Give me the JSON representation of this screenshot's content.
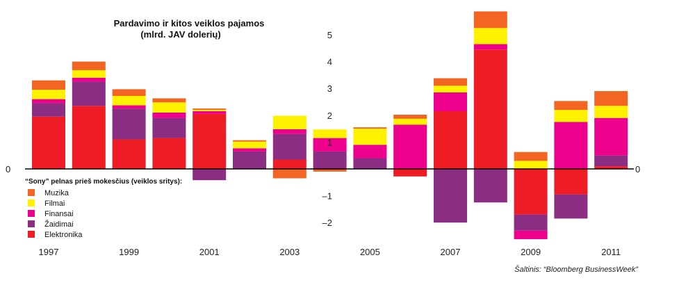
{
  "chart_data": {
    "type": "bar",
    "stacked": true,
    "title_line1": "Pardavimo ir kitos veiklos pajamos",
    "title_line2": "(mlrd. JAV dolerių)",
    "legend_title": "“Sony” pelnas prieš mokesčius (veiklos sritys):",
    "source": "Šaltinis: “Bloomberg BusinessWeek”",
    "ylim": [
      -2.65,
      6.0
    ],
    "yticks": [
      5,
      4,
      3,
      2,
      1,
      -1,
      -2
    ],
    "ytick_labels": [
      "5",
      "4",
      "3",
      "2",
      "1",
      "–1",
      "–2"
    ],
    "zero_label": "0",
    "categories": [
      "1997",
      "1998",
      "1999",
      "2000",
      "2001",
      "2002",
      "2003",
      "2004",
      "2005",
      "2006",
      "2007",
      "2008",
      "2009",
      "2010",
      "2011"
    ],
    "xtick_labels": [
      "1997",
      "",
      "1999",
      "",
      "2001",
      "",
      "2003",
      "",
      "2005",
      "",
      "2007",
      "",
      "2009",
      "",
      "2011"
    ],
    "legend_placement": "bottom-left",
    "series": [
      {
        "name": "Elektronika",
        "color": "#ee1c25",
        "values": [
          1.95,
          2.35,
          1.1,
          1.15,
          2.05,
          0,
          0.35,
          0,
          0,
          -0.28,
          2.15,
          4.45,
          -1.7,
          -0.95,
          0.1
        ]
      },
      {
        "name": "Žaidimai",
        "color": "#8b2d82",
        "values": [
          0.5,
          0.9,
          1.15,
          0.75,
          -0.42,
          0.65,
          0.95,
          0.65,
          0.4,
          0,
          -2.0,
          -1.25,
          -0.6,
          -0.9,
          0.4
        ]
      },
      {
        "name": "Finansai",
        "color": "#ec008c",
        "values": [
          0.15,
          0.15,
          0.12,
          0.2,
          0.1,
          0.12,
          0.18,
          0.5,
          0.5,
          1.65,
          0.7,
          0.2,
          -0.32,
          1.75,
          1.4
        ]
      },
      {
        "name": "Filmai",
        "color": "#fff200",
        "values": [
          0.35,
          0.28,
          0.35,
          0.38,
          0.05,
          0.25,
          0.5,
          0.32,
          0.6,
          0.22,
          0.25,
          0.6,
          0.3,
          0.45,
          0.45
        ]
      },
      {
        "name": "Muzika",
        "color": "#f26522",
        "values": [
          0.35,
          0.32,
          0.25,
          0.15,
          0.05,
          0.05,
          -0.35,
          -0.1,
          0.05,
          0.15,
          0.28,
          0.62,
          0.33,
          0.33,
          0.55
        ]
      }
    ],
    "legend_order": [
      "Muzika",
      "Filmai",
      "Finansai",
      "Žaidimai",
      "Elektronika"
    ]
  }
}
